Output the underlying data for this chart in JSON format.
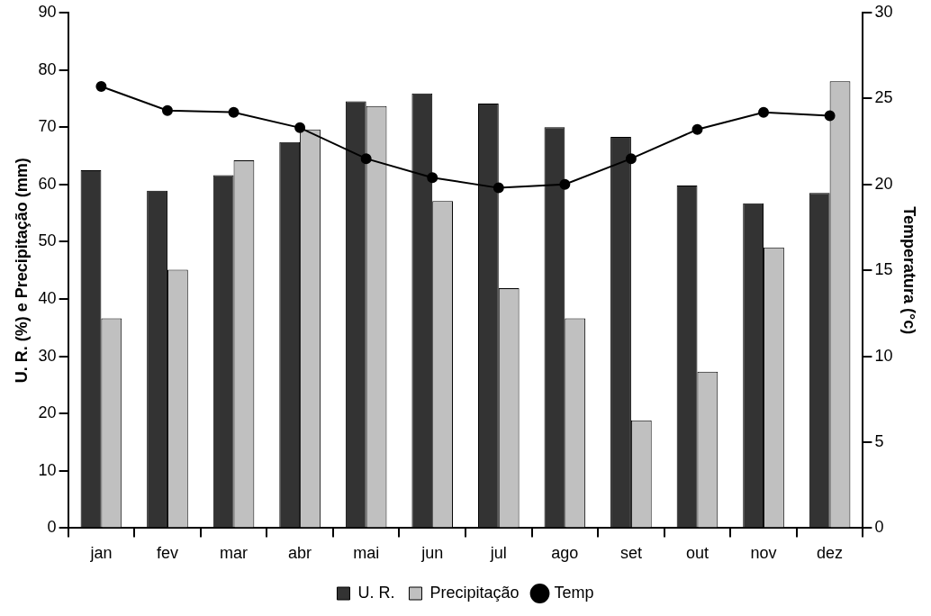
{
  "chart_data": {
    "type": "bar",
    "ylabel": "U. R. (%) e Precipitação (mm)",
    "y2label": "Temperatura (°c)",
    "categories": [
      "jan",
      "fev",
      "mar",
      "abr",
      "mai",
      "jun",
      "jul",
      "ago",
      "set",
      "out",
      "nov",
      "dez"
    ],
    "series": [
      {
        "name": "U. R.",
        "color": "#333333",
        "values": [
          62.5,
          58.9,
          61.6,
          67.4,
          74.5,
          75.9,
          74.1,
          70.0,
          68.3,
          59.8,
          56.7,
          58.5
        ]
      },
      {
        "name": "Precipitação",
        "color": "#c0c0c0",
        "values": [
          36.6,
          45.1,
          64.2,
          69.6,
          73.7,
          57.1,
          41.9,
          36.6,
          18.8,
          27.3,
          49.0,
          78.0
        ]
      },
      {
        "name": "Temp",
        "type": "line",
        "axis": "y2",
        "color": "#000000",
        "marker": "circle",
        "values": [
          25.7,
          24.3,
          24.2,
          23.3,
          21.5,
          20.4,
          19.8,
          20.0,
          21.5,
          23.2,
          24.2,
          24.0
        ]
      }
    ],
    "ylim": [
      0,
      90
    ],
    "yticks": [
      0,
      10,
      20,
      30,
      40,
      50,
      60,
      70,
      80,
      90
    ],
    "y2lim": [
      0,
      30
    ],
    "y2ticks": [
      0,
      5,
      10,
      15,
      20,
      25,
      30
    ],
    "grid": false,
    "legend": "bottom"
  }
}
